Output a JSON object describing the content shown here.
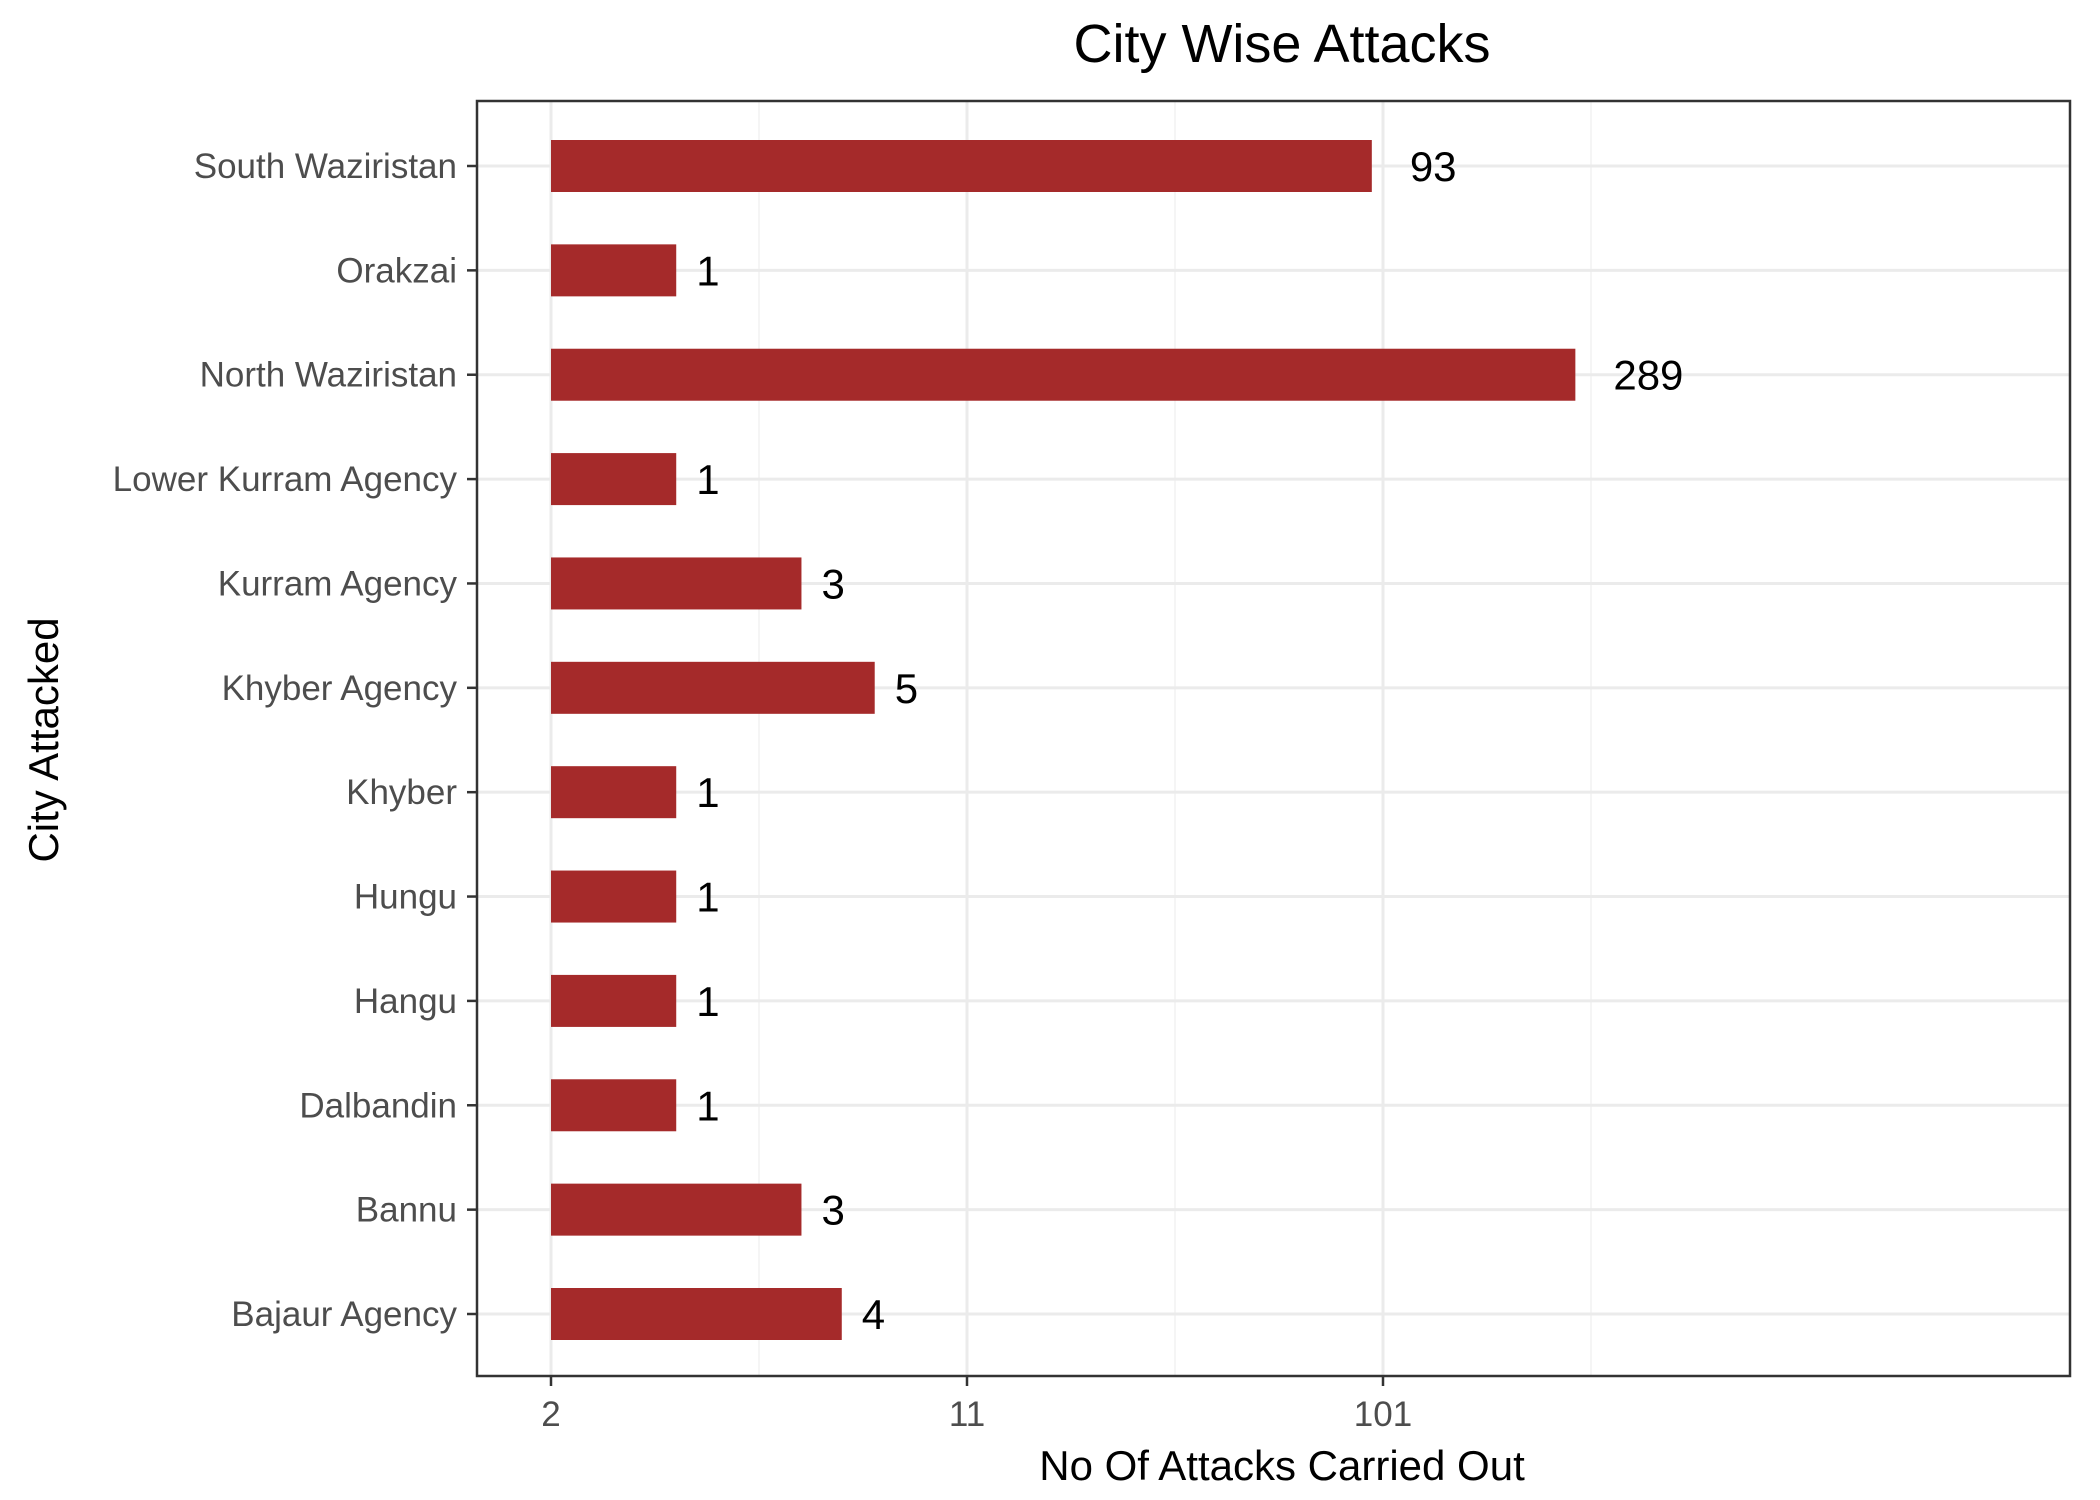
{
  "chart_data": {
    "type": "bar",
    "orientation": "horizontal",
    "title": "City Wise Attacks",
    "xlabel": "No Of Attacks Carried Out",
    "ylabel": "City Attacked",
    "x_scale": "log (count + 1)",
    "x_ticks": [
      {
        "value": 1,
        "label": "2"
      },
      {
        "value": 10,
        "label": "11"
      },
      {
        "value": 100,
        "label": "101"
      }
    ],
    "categories": [
      "South Waziristan",
      "Orakzai",
      "North Waziristan",
      "Lower Kurram Agency",
      "Kurram Agency",
      "Khyber Agency",
      "Khyber",
      "Hungu",
      "Hangu",
      "Dalbandin",
      "Bannu",
      "Bajaur  Agency"
    ],
    "values": [
      93,
      1,
      289,
      1,
      3,
      5,
      1,
      1,
      1,
      1,
      3,
      4
    ],
    "value_labels": [
      "93",
      "1",
      "289",
      "1",
      "3",
      "5",
      "1",
      "1",
      "1",
      "1",
      "3",
      "4"
    ],
    "bar_color": "#A52A2A",
    "grid": true,
    "legend": "none"
  }
}
